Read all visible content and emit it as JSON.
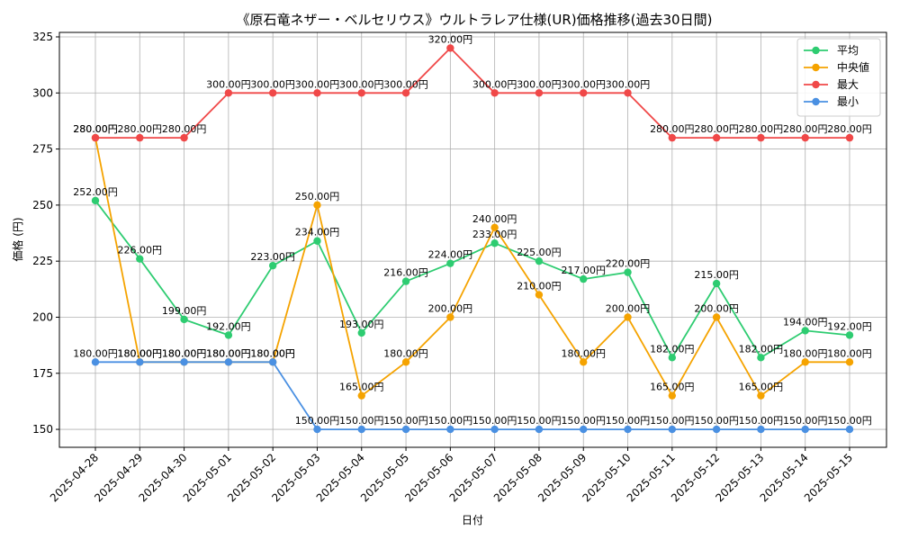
{
  "chart_data": {
    "type": "line",
    "title": "《原石竜ネザー・ベルセリウス》ウルトラレア仕様(UR)価格推移(過去30日間)",
    "xlabel": "日付",
    "ylabel": "価格 (円)",
    "ylim": [
      142,
      327
    ],
    "yticks": [
      150,
      175,
      200,
      225,
      250,
      275,
      300,
      325
    ],
    "grid": true,
    "legend_position": "top-right",
    "label_suffix": "円",
    "x": [
      "2025-04-28",
      "2025-04-29",
      "2025-04-30",
      "2025-05-01",
      "2025-05-02",
      "2025-05-03",
      "2025-05-04",
      "2025-05-05",
      "2025-05-06",
      "2025-05-07",
      "2025-05-08",
      "2025-05-09",
      "2025-05-10",
      "2025-05-11",
      "2025-05-12",
      "2025-05-13",
      "2025-05-14",
      "2025-05-15"
    ],
    "series": [
      {
        "name": "平均",
        "color": "#2ecc71",
        "values": [
          252,
          226,
          199,
          192,
          223,
          234,
          193,
          216,
          224,
          233,
          225,
          217,
          220,
          182,
          215,
          182,
          194,
          192
        ]
      },
      {
        "name": "中央値",
        "color": "#f5a300",
        "values": [
          280,
          180,
          180,
          180,
          180,
          250,
          165,
          180,
          200,
          240,
          210,
          180,
          200,
          165,
          200,
          165,
          180,
          180
        ]
      },
      {
        "name": "最大",
        "color": "#f04848",
        "values": [
          280,
          280,
          280,
          300,
          300,
          300,
          300,
          300,
          320,
          300,
          300,
          300,
          300,
          280,
          280,
          280,
          280,
          280
        ]
      },
      {
        "name": "最小",
        "color": "#4a90e2",
        "values": [
          180,
          180,
          180,
          180,
          180,
          150,
          150,
          150,
          150,
          150,
          150,
          150,
          150,
          150,
          150,
          150,
          150,
          150
        ]
      }
    ]
  }
}
